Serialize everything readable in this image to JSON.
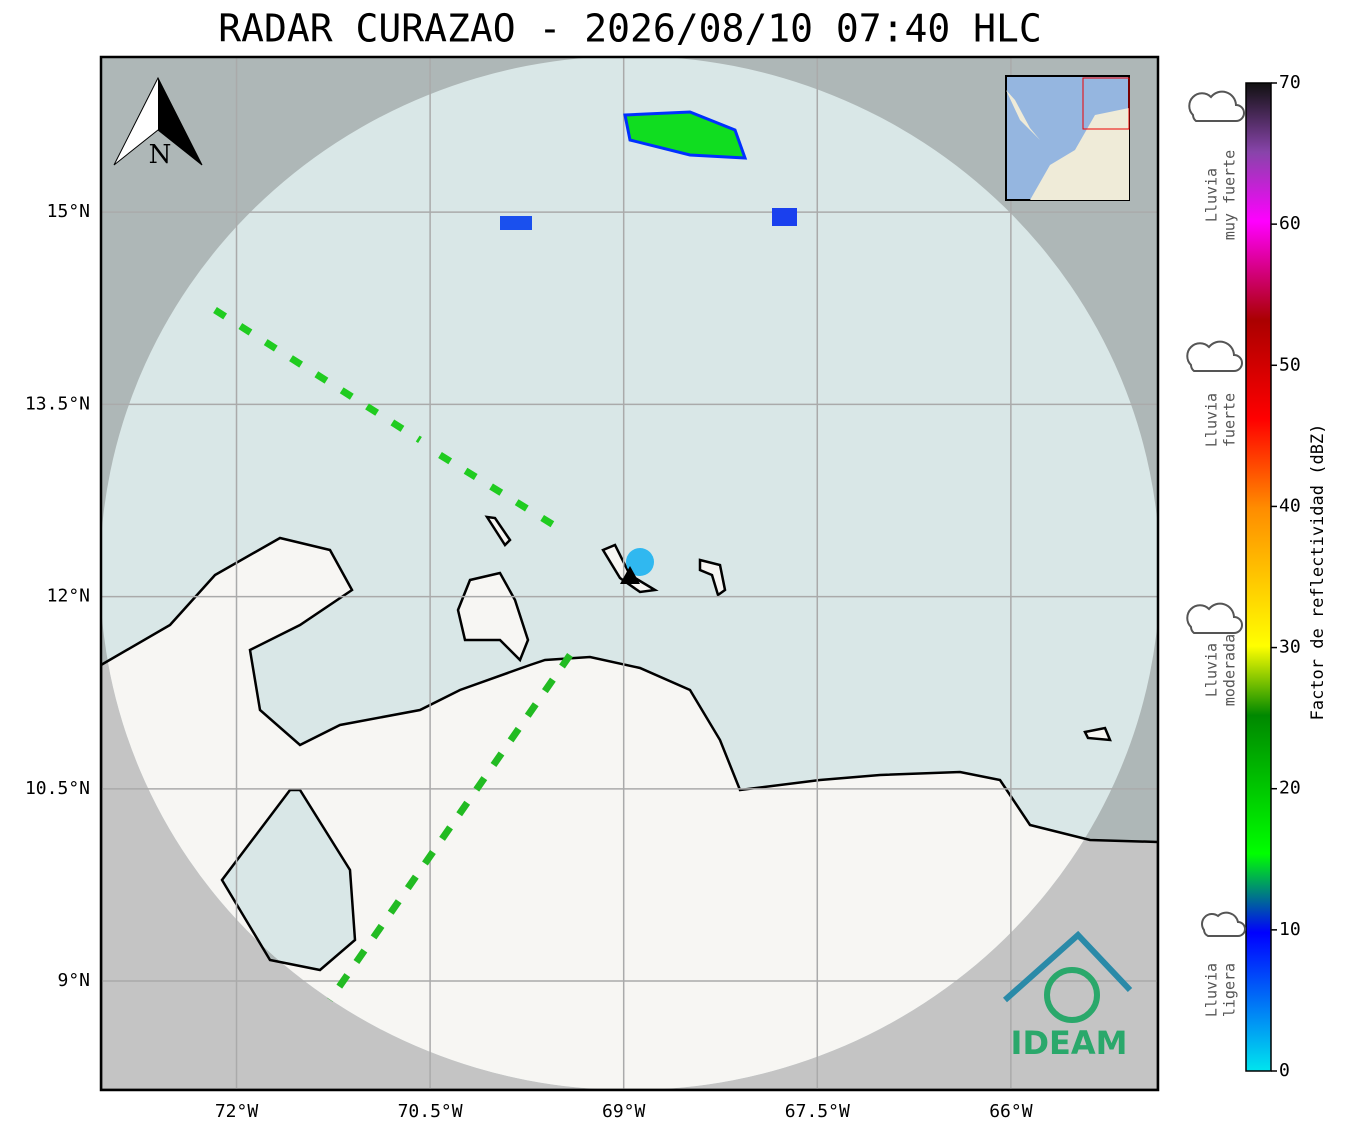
{
  "map": {
    "title": "RADAR CURAZAO - 2026/08/10 07:40 HLC",
    "lonlim": [
      -73.05,
      -64.86
    ],
    "latlim": [
      8.15,
      16.21
    ],
    "lonticks": [
      {
        "value": -72,
        "label": "72°W"
      },
      {
        "value": -70.5,
        "label": "70.5°W"
      },
      {
        "value": -69,
        "label": "69°W"
      },
      {
        "value": -67.5,
        "label": "67.5°W"
      },
      {
        "value": -66,
        "label": "66°W"
      }
    ],
    "latticks": [
      {
        "value": 15,
        "label": "15°N"
      },
      {
        "value": 13.5,
        "label": "13.5°N"
      },
      {
        "value": 12,
        "label": "12°N"
      },
      {
        "value": 10.5,
        "label": "10.5°N"
      },
      {
        "value": 9,
        "label": "9°N"
      }
    ],
    "north": "N",
    "logo": "IDEAM"
  },
  "colorbar": {
    "label": "Factor de reflectividad (dBZ)",
    "lim": [
      0,
      70
    ],
    "ticks": [
      0,
      10,
      20,
      30,
      40,
      50,
      60,
      70
    ]
  },
  "legend": [
    {
      "lines": [
        "Lluvia",
        "muy fuerte"
      ]
    },
    {
      "lines": [
        "Lluvia",
        "fuerte"
      ]
    },
    {
      "lines": [
        "Lluvia",
        "moderada"
      ]
    },
    {
      "lines": [
        "Lluvia",
        "ligera"
      ]
    }
  ]
}
